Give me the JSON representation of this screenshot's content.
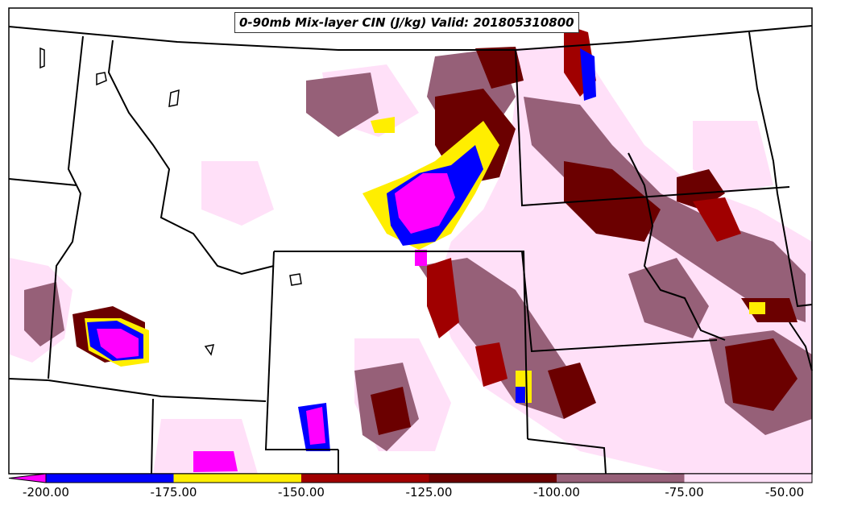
{
  "title": "0-90mb Mix-layer CIN (J/kg) Valid: 201805310800",
  "colorbar": {
    "labels": [
      "-200.00",
      "-175.00",
      "-150.00",
      "-125.00",
      "-100.00",
      "-75.00",
      "-50.00"
    ],
    "bins": [
      {
        "from": "-200",
        "to": "-175",
        "color": "#0000ff"
      },
      {
        "from": "-175",
        "to": "-150",
        "color": "#ffee00"
      },
      {
        "from": "-150",
        "to": "-125",
        "color": "#a00000"
      },
      {
        "from": "-125",
        "to": "-100",
        "color": "#6b0000"
      },
      {
        "from": "-100",
        "to": "-75",
        "color": "#966078"
      },
      {
        "from": "-75",
        "to": "-50",
        "color": "#ffe0f8"
      }
    ],
    "extend_color": "#ff00ff"
  }
}
